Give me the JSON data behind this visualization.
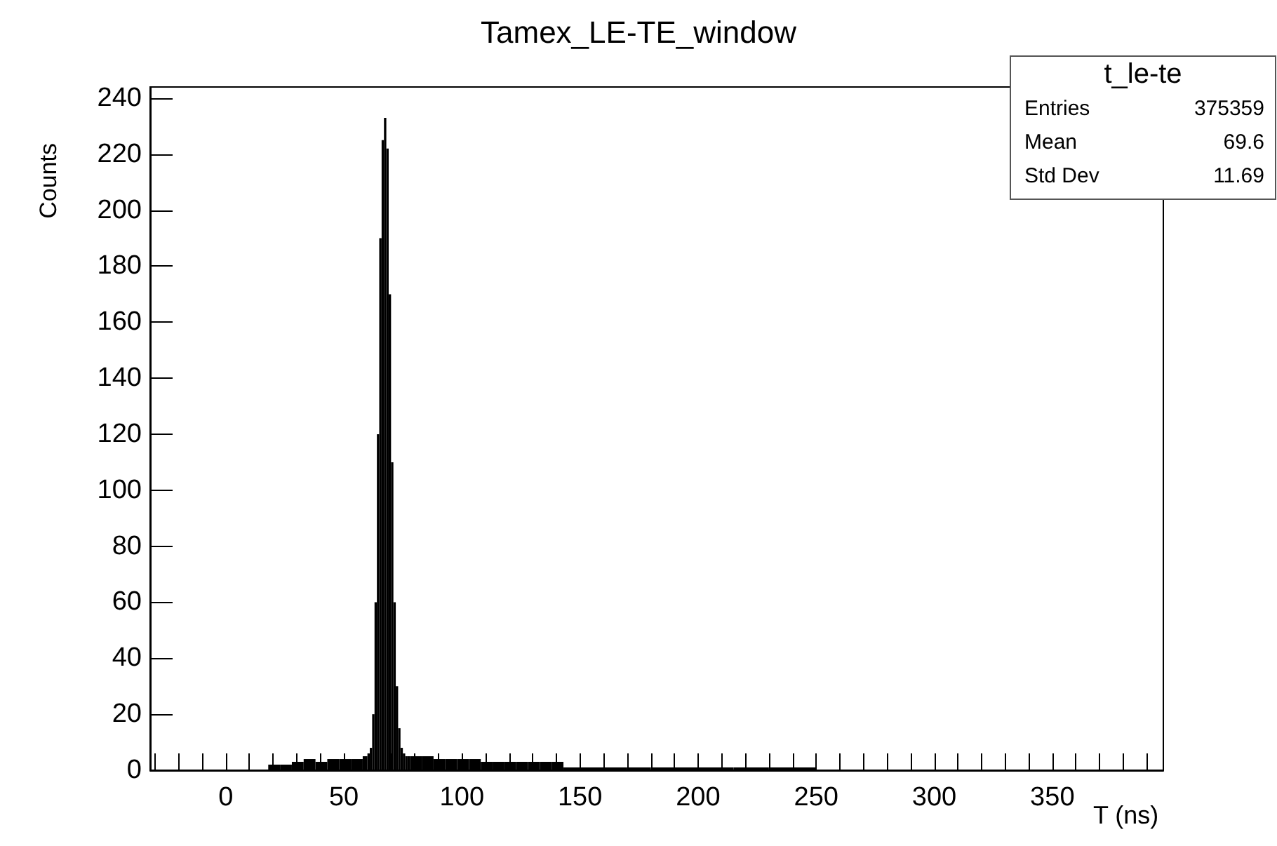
{
  "chart_data": {
    "type": "histogram",
    "title": "Tamex_LE-TE_window",
    "xlabel": "T (ns)",
    "ylabel": "Counts",
    "annotations": [
      "t_le-te",
      "Entries",
      "375359",
      "Mean",
      "69.6",
      "Std Dev",
      "11.69"
    ],
    "bins": [
      18,
      23,
      28,
      33,
      38,
      43,
      48,
      53,
      58,
      60,
      61,
      62,
      63,
      64,
      65,
      66,
      67,
      68,
      69,
      70,
      71,
      72,
      73,
      74,
      75,
      76,
      77,
      78,
      83,
      88,
      93,
      98,
      103,
      108,
      113,
      118,
      123,
      128,
      133,
      138,
      143,
      150,
      160,
      170,
      180,
      190,
      200,
      215,
      230,
      250
    ],
    "values": [
      2,
      2,
      3,
      4,
      3,
      4,
      4,
      4,
      5,
      6,
      8,
      20,
      60,
      120,
      190,
      225,
      233,
      222,
      170,
      110,
      60,
      30,
      15,
      8,
      6,
      5,
      5,
      5,
      5,
      4,
      4,
      4,
      4,
      3,
      3,
      3,
      3,
      3,
      3,
      3,
      1,
      1,
      1,
      1,
      1,
      1,
      1,
      1,
      1
    ],
    "color": "#000000",
    "xlim": [
      -32,
      397
    ],
    "ylim": [
      0,
      244
    ],
    "xticks": [
      {
        "value": -30,
        "label": null
      },
      {
        "value": -20,
        "label": null
      },
      {
        "value": -10,
        "label": null
      },
      0,
      {
        "value": 10,
        "label": null
      },
      {
        "value": 20,
        "label": null
      },
      {
        "value": 30,
        "label": null
      },
      {
        "value": 40,
        "label": null
      },
      50,
      {
        "value": 60,
        "label": null
      },
      {
        "value": 70,
        "label": null
      },
      {
        "value": 80,
        "label": null
      },
      {
        "value": 90,
        "label": null
      },
      100,
      {
        "value": 110,
        "label": null
      },
      {
        "value": 120,
        "label": null
      },
      {
        "value": 130,
        "label": null
      },
      {
        "value": 140,
        "label": null
      },
      150,
      {
        "value": 160,
        "label": null
      },
      {
        "value": 170,
        "label": null
      },
      {
        "value": 180,
        "label": null
      },
      {
        "value": 190,
        "label": null
      },
      200,
      {
        "value": 210,
        "label": null
      },
      {
        "value": 220,
        "label": null
      },
      {
        "value": 230,
        "label": null
      },
      {
        "value": 240,
        "label": null
      },
      250,
      {
        "value": 260,
        "label": null
      },
      {
        "value": 270,
        "label": null
      },
      {
        "value": 280,
        "label": null
      },
      {
        "value": 290,
        "label": null
      },
      300,
      {
        "value": 310,
        "label": null
      },
      {
        "value": 320,
        "label": null
      },
      {
        "value": 330,
        "label": null
      },
      {
        "value": 340,
        "label": null
      },
      350,
      {
        "value": 360,
        "label": null
      },
      {
        "value": 370,
        "label": null
      },
      {
        "value": 380,
        "label": null
      },
      {
        "value": 390,
        "label": null
      }
    ],
    "yticks": [
      0,
      20,
      40,
      60,
      80,
      100,
      120,
      140,
      160,
      180,
      200,
      220,
      240
    ],
    "grid": false
  }
}
